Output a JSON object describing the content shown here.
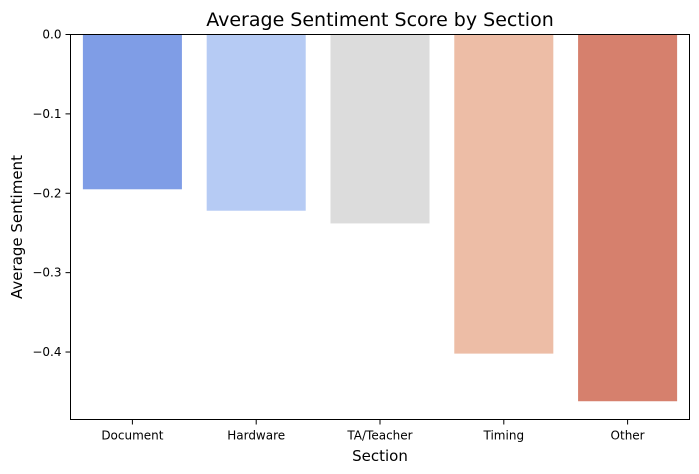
{
  "chart_data": {
    "type": "bar",
    "title": "Average Sentiment Score by Section",
    "xlabel": "Section",
    "ylabel": "Average Sentiment",
    "categories": [
      "Document",
      "Hardware",
      "TA/Teacher",
      "Timing",
      "Other"
    ],
    "values": [
      -0.195,
      -0.222,
      -0.238,
      -0.402,
      -0.462
    ],
    "colors": [
      "#7f9de6",
      "#b6cbf4",
      "#dcdcdc",
      "#edbda6",
      "#d6806d"
    ],
    "ylim": [
      -0.485,
      0.0
    ],
    "yticks": [
      0.0,
      -0.1,
      -0.2,
      -0.3,
      -0.4
    ],
    "ytick_labels": [
      "0.0",
      "−0.1",
      "−0.2",
      "−0.3",
      "−0.4"
    ],
    "grid": false
  }
}
